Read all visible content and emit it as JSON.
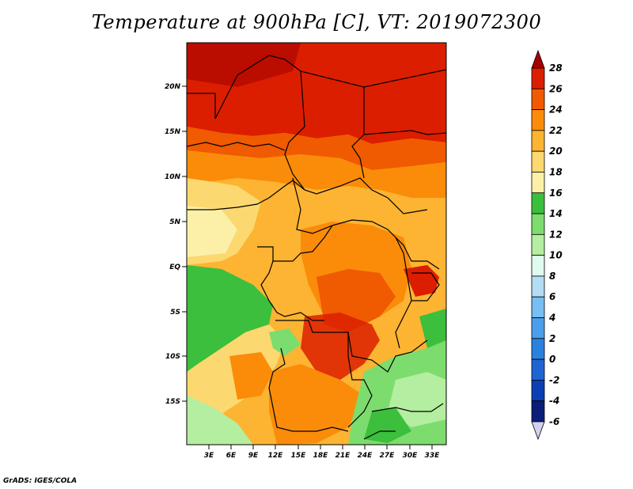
{
  "title": "Temperature at 900hPa [C], VT: 2019072300",
  "credit": "GrADS: IGES/COLA",
  "map": {
    "lat_labels": [
      "20N",
      "15N",
      "10N",
      "5N",
      "EQ",
      "5S",
      "10S",
      "15S"
    ],
    "lon_labels": [
      "3E",
      "6E",
      "9E",
      "12E",
      "15E",
      "18E",
      "21E",
      "24E",
      "27E",
      "30E",
      "33E"
    ]
  },
  "colorbar": {
    "levels": [
      "28",
      "26",
      "24",
      "22",
      "20",
      "18",
      "16",
      "14",
      "12",
      "10",
      "8",
      "6",
      "4",
      "2",
      "0",
      "-2",
      "-4",
      "-6"
    ],
    "colors": [
      "#a50000",
      "#dc1e00",
      "#f05a00",
      "#fa8c0a",
      "#fcb432",
      "#fcd870",
      "#fcf0a8",
      "#3cbf3c",
      "#7ddc6e",
      "#b4eea0",
      "#e0faf0",
      "#b4dcf4",
      "#78bef0",
      "#4a9eea",
      "#2a82dc",
      "#1e64d2",
      "#0a40b4",
      "#0a1e78",
      "#d2d2f0"
    ]
  }
}
